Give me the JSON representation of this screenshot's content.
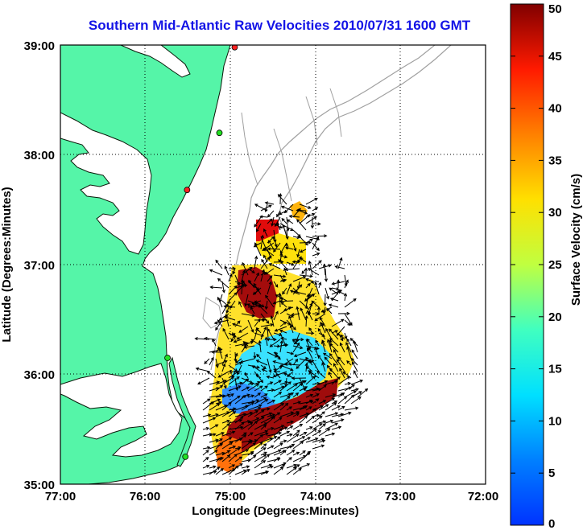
{
  "title": "Southern Mid-Atlantic Raw Velocities 2010/07/31 1600 GMT",
  "map": {
    "xlabel": "Longitude (Degrees:Minutes)",
    "ylabel": "Latitude (Degrees:Minutes)",
    "x_ticks": [
      "77:00",
      "76:00",
      "75:00",
      "74:00",
      "73:00",
      "72:00"
    ],
    "y_ticks": [
      "39:00",
      "38:00",
      "37:00",
      "36:00",
      "35:00"
    ],
    "lon_range": [
      -77,
      -72
    ],
    "lat_range": [
      35,
      39
    ],
    "grid": "dotted",
    "land_color": "#55f5a8",
    "water_color": "#ffffff",
    "bathymetry_color": "#a0a0a0",
    "station_markers": [
      {
        "lon": -74.95,
        "lat": 38.98,
        "color": "#ff2020"
      },
      {
        "lon": -75.13,
        "lat": 38.2,
        "color": "#22e022"
      },
      {
        "lon": -75.51,
        "lat": 37.68,
        "color": "#ff2020"
      },
      {
        "lon": -75.74,
        "lat": 36.15,
        "color": "#22e022"
      },
      {
        "lon": -75.53,
        "lat": 35.25,
        "color": "#22e022"
      }
    ]
  },
  "colorbar": {
    "label": "Surface Velocity (cm/s)",
    "ticks": [
      "0",
      "5",
      "10",
      "15",
      "20",
      "25",
      "30",
      "35",
      "40",
      "45",
      "50"
    ],
    "range": [
      0,
      50
    ],
    "colormap": "jet"
  }
}
